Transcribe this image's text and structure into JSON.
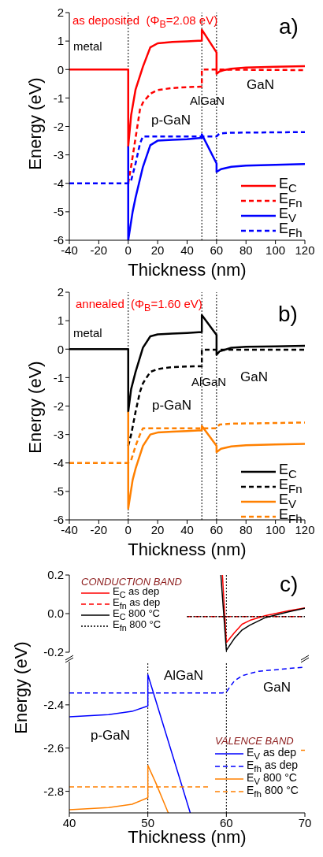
{
  "chart_data": [
    {
      "type": "line",
      "title": "as deposited  (Φ$_{B}$=2.08 eV)",
      "xlabel": "Thickness (nm)",
      "ylabel": "Energy (eV)",
      "annotations": [
        "metal",
        "p-GaN",
        "AlGaN",
        "GaN",
        "a)"
      ],
      "xlim": [
        -40,
        120
      ],
      "ylim": [
        -6,
        2
      ],
      "xticks": [
        -40,
        -20,
        0,
        20,
        40,
        60,
        80,
        100,
        120
      ],
      "yticks": [
        -6,
        -5,
        -4,
        -3,
        -2,
        -1,
        0,
        1,
        2
      ],
      "legend": "bottom right",
      "ref_lines": [
        {
          "axis": "x",
          "value": 0,
          "color": "#000000",
          "line_style": "dotted"
        },
        {
          "axis": "x",
          "value": 50,
          "color": "#000000",
          "line_style": "dotted"
        },
        {
          "axis": "x",
          "value": 60,
          "color": "#000000",
          "line_style": "dotted"
        }
      ],
      "series": [
        {
          "name": "E$_{C}$",
          "color": "#ff0000",
          "line_style": "solid",
          "x": [
            -40,
            0,
            0,
            2,
            5,
            10,
            15,
            20,
            30,
            40,
            50,
            50,
            60,
            60,
            62,
            65,
            70,
            80,
            100,
            120
          ],
          "values": [
            0,
            0,
            -2.7,
            -1.6,
            -0.7,
            0.1,
            0.78,
            0.92,
            0.97,
            0.99,
            1.02,
            1.4,
            0.6,
            -0.15,
            -0.07,
            -0.02,
            0.03,
            0.07,
            0.1,
            0.12
          ]
        },
        {
          "name": "E$_{Fn}$",
          "color": "#ff0000",
          "line_style": "dashed",
          "x": [
            0,
            2,
            5,
            8,
            10,
            15,
            20,
            30,
            40,
            50,
            50,
            60,
            80,
            120
          ],
          "values": [
            -4,
            -3.4,
            -2.4,
            -1.4,
            -1.16,
            -0.85,
            -0.72,
            -0.65,
            -0.62,
            -0.6,
            0,
            0,
            -0.01,
            -0.02
          ]
        },
        {
          "name": "E$_{V}$",
          "color": "#0000ff",
          "line_style": "solid",
          "x": [
            0,
            0,
            3,
            5,
            10,
            15,
            20,
            30,
            40,
            50,
            50,
            60,
            60,
            63,
            70,
            80,
            100,
            120
          ],
          "values": [
            -2.7,
            -6,
            -5,
            -4.5,
            -3.42,
            -2.66,
            -2.5,
            -2.47,
            -2.45,
            -2.4,
            -2.28,
            -3.3,
            -3.6,
            -3.5,
            -3.42,
            -3.38,
            -3.35,
            -3.32
          ]
        },
        {
          "name": "E$_{Fh}$",
          "color": "#0000ff",
          "line_style": "dashed",
          "x": [
            -40,
            0,
            2,
            5,
            8,
            10,
            50,
            60,
            62,
            70,
            120
          ],
          "values": [
            -4,
            -4,
            -3.9,
            -3.3,
            -2.6,
            -2.35,
            -2.35,
            -2.35,
            -2.25,
            -2.22,
            -2.2
          ]
        }
      ]
    },
    {
      "type": "line",
      "title": "annealed  (Φ$_{B}$=1.60 eV)",
      "xlabel": "Thickness (nm)",
      "ylabel": "Energy (eV)",
      "annotations": [
        "metal",
        "p-GaN",
        "AlGaN",
        "GaN",
        "b)"
      ],
      "xlim": [
        -40,
        120
      ],
      "ylim": [
        -6,
        2
      ],
      "xticks": [
        -40,
        -20,
        0,
        20,
        40,
        60,
        80,
        100,
        120
      ],
      "yticks": [
        -6,
        -5,
        -4,
        -3,
        -2,
        -1,
        0,
        1,
        2
      ],
      "legend": "bottom right",
      "ref_lines": [
        {
          "axis": "x",
          "value": 0,
          "color": "#000000",
          "line_style": "dotted"
        },
        {
          "axis": "x",
          "value": 50,
          "color": "#000000",
          "line_style": "dotted"
        },
        {
          "axis": "x",
          "value": 60,
          "color": "#000000",
          "line_style": "dotted"
        }
      ],
      "series": [
        {
          "name": "E$_{C}$",
          "color": "#000000",
          "line_style": "solid",
          "x": [
            -40,
            0,
            0,
            2,
            5,
            10,
            15,
            20,
            30,
            40,
            50,
            50,
            60,
            60,
            62,
            70,
            80,
            100,
            120
          ],
          "values": [
            0,
            0,
            -2.2,
            -1.4,
            -0.8,
            0.05,
            0.45,
            0.52,
            0.55,
            0.57,
            0.6,
            1.2,
            0.5,
            -0.2,
            -0.08,
            0.05,
            0.08,
            0.1,
            0.12
          ]
        },
        {
          "name": "E$_{Fn}$",
          "color": "#000000",
          "line_style": "dashed",
          "x": [
            0,
            2,
            5,
            8,
            10,
            15,
            20,
            30,
            40,
            50,
            50,
            80,
            120
          ],
          "values": [
            -3.4,
            -3,
            -2.2,
            -1.5,
            -1.2,
            -0.8,
            -0.7,
            -0.63,
            -0.61,
            -0.6,
            -0.02,
            -0.02,
            -0.02
          ]
        },
        {
          "name": "E$_{V}$",
          "color": "#ff8000",
          "line_style": "solid",
          "x": [
            0,
            0,
            3,
            5,
            10,
            15,
            20,
            30,
            40,
            50,
            50,
            60,
            60,
            63,
            70,
            80,
            100,
            120
          ],
          "values": [
            -2.2,
            -5.6,
            -4.6,
            -4.2,
            -3.4,
            -3,
            -2.93,
            -2.9,
            -2.88,
            -2.85,
            -2.7,
            -3.4,
            -3.62,
            -3.5,
            -3.42,
            -3.38,
            -3.35,
            -3.33
          ]
        },
        {
          "name": "E$_{Fh}$",
          "color": "#ff8000",
          "line_style": "dashed",
          "x": [
            -40,
            0,
            2,
            5,
            8,
            10,
            50,
            60,
            62,
            70,
            120
          ],
          "values": [
            -4,
            -4,
            -3.9,
            -3.4,
            -3,
            -2.78,
            -2.78,
            -2.78,
            -2.65,
            -2.62,
            -2.58
          ]
        }
      ]
    },
    {
      "type": "line",
      "legend_title": "CONDUCTION BAND",
      "annotations": [
        "c)"
      ],
      "xlim": [
        40,
        70
      ],
      "ylim": [
        -0.2,
        0.2
      ],
      "xticks": [
        40,
        50,
        60,
        70
      ],
      "yticks": [
        -0.2,
        {
          "value": 0,
          "label": "0.0"
        },
        0.2
      ],
      "tick_labels": "y",
      "legend": "top left",
      "ref_lines": [
        {
          "axis": "x",
          "value": 60,
          "color": "#000000",
          "line_style": "dotted"
        }
      ],
      "series": [
        {
          "name": "E$_{C}$ as dep",
          "color": "#ff0000",
          "line_style": "solid",
          "x": [
            59.5,
            60,
            61,
            62,
            63,
            65,
            68,
            70
          ],
          "values": [
            0.2,
            -0.15,
            -0.1,
            -0.055,
            -0.035,
            -0.01,
            0.015,
            0.03
          ]
        },
        {
          "name": "E$_{fn}$ as dep",
          "color": "#ff0000",
          "line_style": "dashed",
          "x": [
            55,
            70
          ],
          "values": [
            -0.015,
            -0.015
          ]
        },
        {
          "name": "E$_{C}$ 800 °C",
          "color": "#000000",
          "line_style": "solid",
          "x": [
            59.3,
            60,
            61,
            62,
            63,
            65,
            68,
            70
          ],
          "values": [
            0.2,
            -0.19,
            -0.13,
            -0.085,
            -0.06,
            -0.02,
            0.01,
            0.028
          ]
        },
        {
          "name": "E$_{fn}$ 800 °C",
          "color": "#000000",
          "line_style": "dotted",
          "x": [
            55,
            70
          ],
          "values": [
            -0.015,
            -0.015
          ]
        }
      ]
    },
    {
      "type": "line",
      "legend_title": "VALENCE BAND",
      "xlabel": "Thickness (nm)",
      "ylabel": "Energy (eV)",
      "annotations": [
        "AlGaN",
        "GaN",
        "p-GaN"
      ],
      "xlim": [
        40,
        70
      ],
      "ylim": [
        -2.9,
        -2.2
      ],
      "xticks": [
        40,
        50,
        60,
        70
      ],
      "yticks": [
        -2.4,
        -2.6,
        -2.8
      ],
      "legend": "bottom right",
      "ref_lines": [
        {
          "axis": "x",
          "value": 50,
          "color": "#000000",
          "line_style": "dotted"
        },
        {
          "axis": "x",
          "value": 60,
          "color": "#000000",
          "line_style": "dotted"
        }
      ],
      "series": [
        {
          "name": "E$_{V}$ as dep",
          "color": "#0000ff",
          "line_style": "solid",
          "x": [
            40,
            45,
            48,
            50,
            50,
            55.4
          ],
          "values": [
            -2.455,
            -2.445,
            -2.43,
            -2.405,
            -2.26,
            -2.9
          ]
        },
        {
          "name": "E$_{fh}$ as dep",
          "color": "#0000ff",
          "line_style": "dashed",
          "x": [
            40,
            59.5,
            60,
            61,
            62,
            64,
            67,
            70
          ],
          "values": [
            -2.345,
            -2.345,
            -2.34,
            -2.29,
            -2.265,
            -2.245,
            -2.235,
            -2.225
          ]
        },
        {
          "name": "E$_{V}$ 800 °C",
          "color": "#ff8000",
          "line_style": "solid",
          "x": [
            40,
            45,
            48,
            50,
            50,
            51,
            52.6
          ],
          "values": [
            -2.885,
            -2.875,
            -2.86,
            -2.83,
            -2.68,
            -2.76,
            -2.9
          ]
        },
        {
          "name": "E$_{fh}$ 800 °C",
          "color": "#ff8000",
          "line_style": "dashed",
          "x": [
            40,
            58,
            60,
            69.5,
            70
          ],
          "values": [
            -2.78,
            -2.78,
            null,
            -2.61,
            -2.61
          ]
        }
      ]
    }
  ]
}
